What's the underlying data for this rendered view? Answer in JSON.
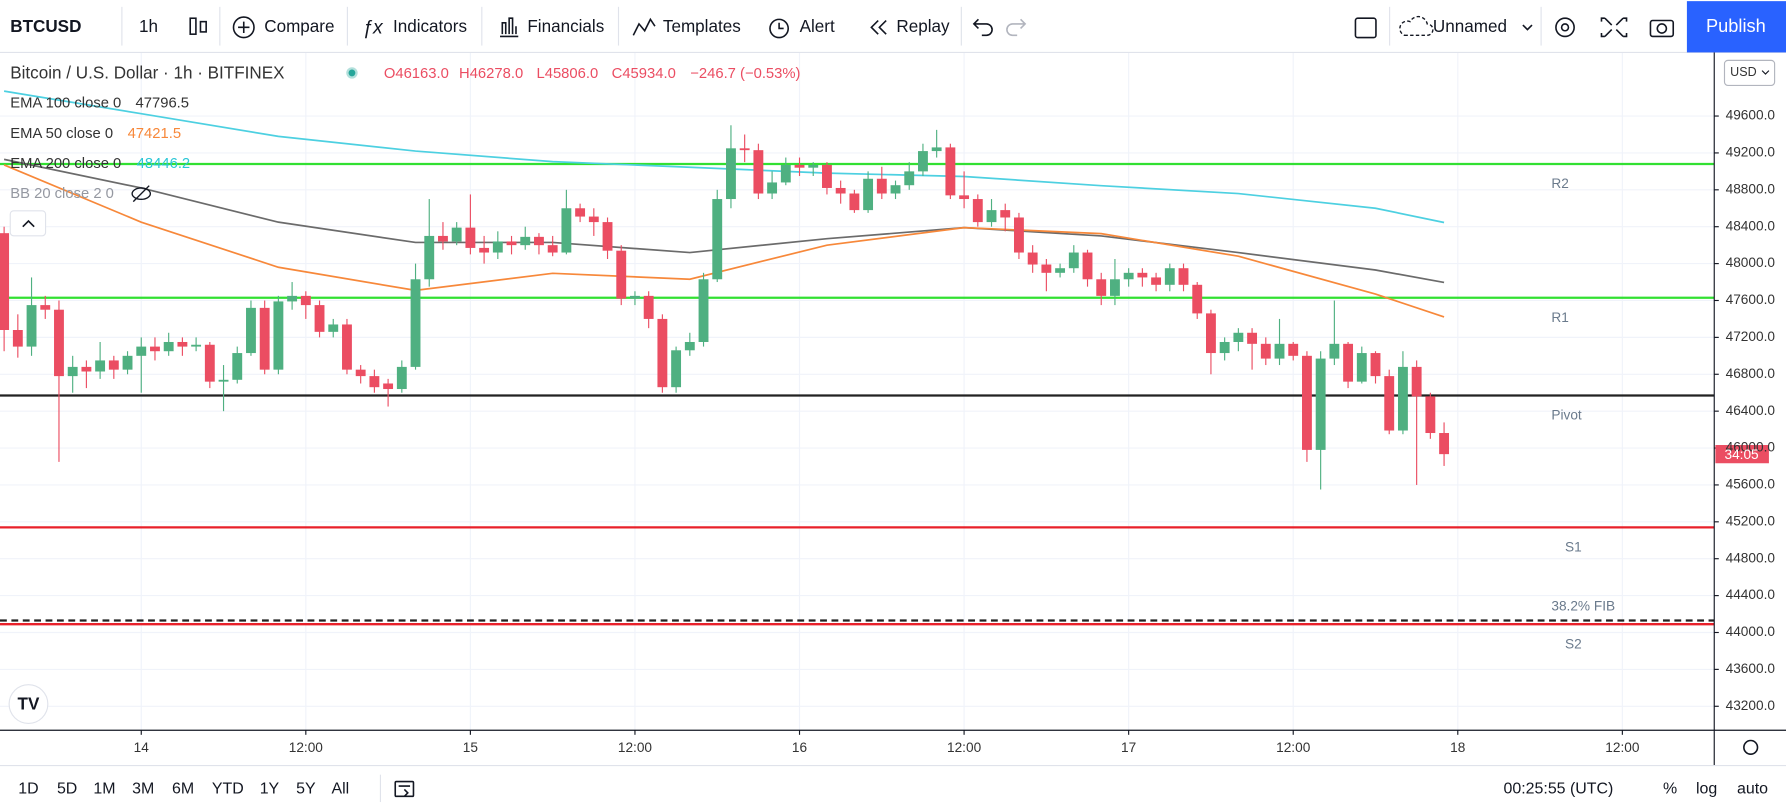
{
  "toolbar": {
    "symbol": "BTCUSD",
    "interval": "1h",
    "items": [
      "Compare",
      "Indicators",
      "Financials",
      "Templates",
      "Alert",
      "Replay"
    ],
    "layout_name": "Unnamed",
    "publish": "Publish"
  },
  "legend": {
    "title": "Bitcoin / U.S. Dollar · 1h · BITFINEX",
    "ohlc": [
      "O46163.0",
      "H46278.0",
      "L45806.0",
      "C45934.0",
      "−246.7 (−0.53%)"
    ],
    "indicators": [
      {
        "name": "EMA 100 close 0",
        "value": "47796.5"
      },
      {
        "name": "EMA 50 close 0",
        "value": "47421.5"
      },
      {
        "name": "EMA 200 close 0",
        "value": "48446.2"
      },
      {
        "name": "BB 20 close 2 0"
      }
    ]
  },
  "currency": "USD",
  "countdown": "34:05",
  "bottom_bar": {
    "ranges": [
      "1D",
      "5D",
      "1M",
      "3M",
      "6M",
      "YTD",
      "1Y",
      "5Y",
      "All"
    ],
    "time": "00:25:55 (UTC)",
    "options": [
      "%",
      "log",
      "auto"
    ]
  },
  "chart_data": {
    "type": "candlestick",
    "up_color": "#4fb081",
    "down_color": "#eb4d62",
    "xlim": [
      -0.3,
      124.7
    ],
    "ylim": [
      42940,
      50290
    ],
    "xticks": [
      {
        "value": 10,
        "label": "14"
      },
      {
        "value": 22,
        "label": "12:00"
      },
      {
        "value": 34,
        "label": "15"
      },
      {
        "value": 46,
        "label": "12:00"
      },
      {
        "value": 58,
        "label": "16"
      },
      {
        "value": 70,
        "label": "12:00"
      },
      {
        "value": 82,
        "label": "17"
      },
      {
        "value": 94,
        "label": "12:00"
      },
      {
        "value": 106,
        "label": "18"
      },
      {
        "value": 118,
        "label": "12:00"
      }
    ],
    "yticks": [
      {
        "value": 43200,
        "label": "43200.0"
      },
      {
        "value": 43600,
        "label": "43600.0"
      },
      {
        "value": 44000,
        "label": "44000.0"
      },
      {
        "value": 44400,
        "label": "44400.0"
      },
      {
        "value": 44800,
        "label": "44800.0"
      },
      {
        "value": 45200,
        "label": "45200.0"
      },
      {
        "value": 45600,
        "label": "45600.0"
      },
      {
        "value": 46000,
        "label": "46000.0"
      },
      {
        "value": 46400,
        "label": "46400.0"
      },
      {
        "value": 46800,
        "label": "46800.0"
      },
      {
        "value": 47200,
        "label": "47200.0"
      },
      {
        "value": 47600,
        "label": "47600.0"
      },
      {
        "value": 48000,
        "label": "48000.0"
      },
      {
        "value": 48400,
        "label": "48400.0"
      },
      {
        "value": 48800,
        "label": "48800.0"
      },
      {
        "value": 49200,
        "label": "49200.0"
      },
      {
        "value": 49600,
        "label": "49600.0"
      }
    ],
    "grid": true,
    "candles": [
      [
        48330,
        48400,
        47050,
        47280
      ],
      [
        47280,
        47450,
        46980,
        47100
      ],
      [
        47100,
        47850,
        47000,
        47550
      ],
      [
        47550,
        47650,
        47400,
        47500
      ],
      [
        47500,
        47600,
        45850,
        46780
      ],
      [
        46780,
        47000,
        46600,
        46880
      ],
      [
        46880,
        46950,
        46650,
        46830
      ],
      [
        46830,
        47150,
        46750,
        46950
      ],
      [
        46950,
        47000,
        46750,
        46850
      ],
      [
        46850,
        47050,
        46800,
        47000
      ],
      [
        47000,
        47200,
        46600,
        47100
      ],
      [
        47100,
        47200,
        46950,
        47050
      ],
      [
        47050,
        47250,
        47000,
        47150
      ],
      [
        47150,
        47200,
        47000,
        47100
      ],
      [
        47100,
        47200,
        47050,
        47120
      ],
      [
        47120,
        47150,
        46650,
        46720
      ],
      [
        46720,
        46900,
        46400,
        46740
      ],
      [
        46740,
        47100,
        46700,
        47030
      ],
      [
        47030,
        47600,
        47000,
        47520
      ],
      [
        47520,
        47600,
        46800,
        46850
      ],
      [
        46850,
        47650,
        46800,
        47590
      ],
      [
        47590,
        47800,
        47500,
        47650
      ],
      [
        47650,
        47700,
        47400,
        47550
      ],
      [
        47550,
        47600,
        47200,
        47260
      ],
      [
        47260,
        47400,
        47200,
        47340
      ],
      [
        47340,
        47400,
        46800,
        46850
      ],
      [
        46850,
        46900,
        46700,
        46780
      ],
      [
        46780,
        46850,
        46600,
        46660
      ],
      [
        46700,
        46750,
        46450,
        46640
      ],
      [
        46640,
        46950,
        46600,
        46880
      ],
      [
        46880,
        48000,
        46850,
        47830
      ],
      [
        47830,
        48700,
        47750,
        48300
      ],
      [
        48300,
        48450,
        48150,
        48240
      ],
      [
        48240,
        48450,
        48200,
        48390
      ],
      [
        48390,
        48750,
        48100,
        48170
      ],
      [
        48170,
        48300,
        48000,
        48120
      ],
      [
        48120,
        48350,
        48050,
        48240
      ],
      [
        48240,
        48300,
        48100,
        48200
      ],
      [
        48200,
        48400,
        48150,
        48290
      ],
      [
        48290,
        48330,
        48100,
        48200
      ],
      [
        48200,
        48300,
        48080,
        48120
      ],
      [
        48120,
        48800,
        48100,
        48600
      ],
      [
        48600,
        48650,
        48450,
        48510
      ],
      [
        48510,
        48600,
        48300,
        48450
      ],
      [
        48450,
        48500,
        48050,
        48140
      ],
      [
        48140,
        48200,
        47550,
        47620
      ],
      [
        47620,
        47700,
        47550,
        47650
      ],
      [
        47650,
        47700,
        47300,
        47400
      ],
      [
        47400,
        47450,
        46600,
        46660
      ],
      [
        46660,
        47100,
        46600,
        47060
      ],
      [
        47060,
        47250,
        47000,
        47150
      ],
      [
        47150,
        47900,
        47100,
        47830
      ],
      [
        47830,
        48800,
        47800,
        48700
      ],
      [
        48700,
        49500,
        48600,
        49250
      ],
      [
        49250,
        49400,
        49100,
        49230
      ],
      [
        49230,
        49300,
        48700,
        48760
      ],
      [
        48760,
        49000,
        48700,
        48880
      ],
      [
        48880,
        49150,
        48850,
        49070
      ],
      [
        49070,
        49150,
        48950,
        49040
      ],
      [
        49040,
        49100,
        48950,
        49070
      ],
      [
        49070,
        49100,
        48750,
        48820
      ],
      [
        48820,
        48900,
        48650,
        48760
      ],
      [
        48760,
        48800,
        48550,
        48580
      ],
      [
        48580,
        49000,
        48550,
        48920
      ],
      [
        48920,
        49050,
        48700,
        48760
      ],
      [
        48760,
        48900,
        48700,
        48850
      ],
      [
        48850,
        49100,
        48800,
        49000
      ],
      [
        49000,
        49300,
        48950,
        49220
      ],
      [
        49220,
        49450,
        49150,
        49260
      ],
      [
        49260,
        49300,
        48700,
        48740
      ],
      [
        48740,
        49000,
        48600,
        48700
      ],
      [
        48700,
        48750,
        48400,
        48450
      ],
      [
        48450,
        48700,
        48400,
        48580
      ],
      [
        48580,
        48650,
        48350,
        48500
      ],
      [
        48500,
        48550,
        48050,
        48120
      ],
      [
        48120,
        48200,
        47900,
        47990
      ],
      [
        47990,
        48050,
        47700,
        47900
      ],
      [
        47900,
        48000,
        47850,
        47950
      ],
      [
        47950,
        48200,
        47900,
        48120
      ],
      [
        48120,
        48150,
        47750,
        47830
      ],
      [
        47830,
        47900,
        47550,
        47650
      ],
      [
        47650,
        48050,
        47550,
        47830
      ],
      [
        47830,
        47950,
        47750,
        47900
      ],
      [
        47900,
        47950,
        47750,
        47850
      ],
      [
        47850,
        47900,
        47700,
        47770
      ],
      [
        47770,
        48000,
        47700,
        47950
      ],
      [
        47950,
        48000,
        47700,
        47770
      ],
      [
        47770,
        47800,
        47400,
        47460
      ],
      [
        47460,
        47500,
        46800,
        47030
      ],
      [
        47030,
        47200,
        46950,
        47150
      ],
      [
        47150,
        47300,
        47050,
        47250
      ],
      [
        47250,
        47300,
        46850,
        47130
      ],
      [
        47130,
        47200,
        46900,
        46970
      ],
      [
        46970,
        47400,
        46900,
        47130
      ],
      [
        47130,
        47150,
        46950,
        47000
      ],
      [
        47000,
        47050,
        45850,
        45980
      ],
      [
        45980,
        47050,
        45550,
        46970
      ],
      [
        46970,
        47600,
        46900,
        47130
      ],
      [
        47130,
        47150,
        46650,
        46720
      ],
      [
        46720,
        47100,
        46700,
        47030
      ],
      [
        47030,
        47050,
        46700,
        46780
      ],
      [
        46780,
        46850,
        46150,
        46190
      ],
      [
        46190,
        47050,
        46150,
        46880
      ],
      [
        46880,
        46950,
        45600,
        46560
      ],
      [
        46560,
        46600,
        46100,
        46163
      ],
      [
        46163,
        46278,
        45806,
        45934
      ]
    ],
    "series": [
      {
        "name": "EMA 200",
        "color": "#4dd0e1",
        "x": [
          0,
          10,
          20,
          30,
          40,
          50,
          60,
          70,
          80,
          90,
          100,
          105
        ],
        "values": [
          49870,
          49625,
          49380,
          49220,
          49105,
          49045,
          48980,
          48945,
          48845,
          48760,
          48600,
          48446.2
        ]
      },
      {
        "name": "EMA 100",
        "color": "#6b6b6b",
        "x": [
          0,
          10,
          20,
          30,
          40,
          50,
          60,
          70,
          80,
          90,
          100,
          105
        ],
        "values": [
          49130,
          48820,
          48450,
          48230,
          48230,
          48120,
          48270,
          48390,
          48300,
          48120,
          47930,
          47796.5
        ]
      },
      {
        "name": "EMA 50",
        "color": "#f7883a",
        "x": [
          0,
          10,
          20,
          30,
          40,
          50,
          60,
          70,
          80,
          90,
          100,
          105
        ],
        "values": [
          49070,
          48450,
          47960,
          47710,
          47895,
          47830,
          48200,
          48390,
          48325,
          48080,
          47670,
          47421.5
        ]
      }
    ],
    "levels": [
      {
        "label": "R2",
        "value": 49080,
        "color": "#32e032"
      },
      {
        "label": "R1",
        "value": 47630,
        "color": "#32e032"
      },
      {
        "label": "Pivot",
        "value": 46570,
        "color": "#222222"
      },
      {
        "label": "S1",
        "value": 45140,
        "color": "#e8202a"
      },
      {
        "label": "38.2% FIB",
        "value": 44130,
        "color": "#222222",
        "dashed": true
      },
      {
        "label": "S2",
        "value": 44090,
        "color": "#e8202a"
      }
    ]
  }
}
